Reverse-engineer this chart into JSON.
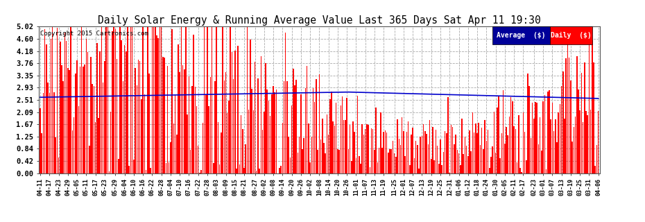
{
  "title": "Daily Solar Energy & Running Average Value Last 365 Days Sat Apr 11 19:30",
  "copyright": "Copyright 2015 Cartronics.com",
  "bar_color": "#FF0000",
  "avg_color": "#0000CC",
  "bg_color": "#FFFFFF",
  "grid_color": "#AAAAAA",
  "ylim": [
    0.0,
    5.02
  ],
  "yticks": [
    0.0,
    0.42,
    0.84,
    1.25,
    1.67,
    2.09,
    2.51,
    2.93,
    3.35,
    3.76,
    4.18,
    4.6,
    5.02
  ],
  "legend_avg_label": "Average  ($)",
  "legend_daily_label": "Daily  ($)",
  "legend_avg_bg": "#000099",
  "legend_daily_bg": "#CC0000",
  "x_labels": [
    "04-11",
    "04-17",
    "04-23",
    "04-29",
    "05-05",
    "05-11",
    "05-17",
    "05-23",
    "05-29",
    "06-04",
    "06-10",
    "06-16",
    "06-22",
    "06-28",
    "07-04",
    "07-10",
    "07-16",
    "07-22",
    "07-28",
    "08-03",
    "08-09",
    "08-15",
    "08-21",
    "08-27",
    "09-02",
    "09-08",
    "09-14",
    "09-20",
    "09-26",
    "10-02",
    "10-08",
    "10-14",
    "10-20",
    "10-26",
    "11-01",
    "11-07",
    "11-13",
    "11-19",
    "11-25",
    "12-01",
    "12-07",
    "12-13",
    "12-19",
    "12-25",
    "12-31",
    "01-06",
    "01-12",
    "01-18",
    "01-24",
    "01-30",
    "02-05",
    "02-11",
    "02-17",
    "02-23",
    "03-01",
    "03-07",
    "03-13",
    "03-19",
    "03-25",
    "03-31",
    "04-06"
  ],
  "n_bars": 365,
  "seed": 12345
}
